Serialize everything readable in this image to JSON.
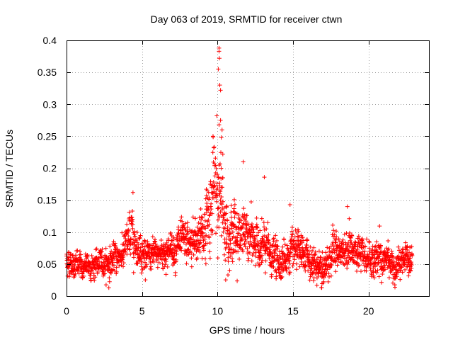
{
  "chart_data": {
    "type": "scatter",
    "title": "Day 063 of 2019, SRMTID for receiver ctwn",
    "xlabel": "GPS time / hours",
    "ylabel": "SRMTID / TECUs",
    "xlim": [
      0,
      24
    ],
    "ylim": [
      0,
      0.4
    ],
    "grid": true,
    "marker": "plus",
    "color": "#ff0000",
    "xticks": [
      0,
      5,
      10,
      15,
      20
    ],
    "xtick_labels": [
      "0",
      "5",
      "10",
      "15",
      "20"
    ],
    "yticks": [
      0,
      0.05,
      0.1,
      0.15,
      0.2,
      0.25,
      0.3,
      0.35,
      0.4
    ],
    "ytick_labels": [
      "0",
      "0.05",
      "0.1",
      "0.15",
      "0.2",
      "0.25",
      "0.3",
      "0.35",
      "0.4"
    ],
    "series": [
      {
        "name": "SRMTID",
        "x_range": [
          0.0,
          22.9
        ],
        "sample_interval_hours": 0.01,
        "trend": {
          "hours": [
            0.0,
            1.0,
            2.0,
            3.0,
            3.8,
            4.3,
            4.8,
            5.5,
            6.5,
            7.5,
            8.5,
            9.2,
            9.6,
            10.0,
            10.3,
            10.6,
            11.0,
            11.5,
            12.0,
            12.8,
            13.3,
            14.0,
            15.0,
            16.0,
            16.9,
            17.5,
            18.5,
            19.5,
            20.5,
            21.5,
            22.3,
            22.9
          ],
          "center": [
            0.055,
            0.045,
            0.05,
            0.055,
            0.07,
            0.1,
            0.075,
            0.06,
            0.07,
            0.08,
            0.08,
            0.11,
            0.15,
            0.17,
            0.14,
            0.11,
            0.1,
            0.1,
            0.09,
            0.08,
            0.07,
            0.055,
            0.065,
            0.06,
            0.04,
            0.065,
            0.075,
            0.065,
            0.055,
            0.05,
            0.06,
            0.06
          ],
          "spread": [
            0.012,
            0.012,
            0.012,
            0.013,
            0.015,
            0.02,
            0.015,
            0.013,
            0.015,
            0.017,
            0.02,
            0.03,
            0.04,
            0.045,
            0.04,
            0.03,
            0.025,
            0.025,
            0.022,
            0.02,
            0.02,
            0.016,
            0.017,
            0.017,
            0.015,
            0.017,
            0.02,
            0.017,
            0.015,
            0.013,
            0.015,
            0.015
          ]
        },
        "notable_points": [
          {
            "x": 10.1,
            "y": 0.388
          },
          {
            "x": 10.1,
            "y": 0.383
          },
          {
            "x": 10.12,
            "y": 0.372
          },
          {
            "x": 10.05,
            "y": 0.355
          },
          {
            "x": 10.15,
            "y": 0.33
          },
          {
            "x": 10.2,
            "y": 0.322
          },
          {
            "x": 9.95,
            "y": 0.282
          },
          {
            "x": 10.2,
            "y": 0.275
          },
          {
            "x": 10.1,
            "y": 0.268
          },
          {
            "x": 10.3,
            "y": 0.26
          },
          {
            "x": 9.7,
            "y": 0.25
          },
          {
            "x": 10.25,
            "y": 0.248
          },
          {
            "x": 9.75,
            "y": 0.232
          },
          {
            "x": 10.35,
            "y": 0.222
          },
          {
            "x": 11.7,
            "y": 0.21
          },
          {
            "x": 13.1,
            "y": 0.186
          },
          {
            "x": 4.4,
            "y": 0.162
          },
          {
            "x": 14.8,
            "y": 0.143
          },
          {
            "x": 18.6,
            "y": 0.14
          },
          {
            "x": 16.9,
            "y": 0.013
          },
          {
            "x": 2.8,
            "y": 0.013
          }
        ]
      }
    ]
  }
}
